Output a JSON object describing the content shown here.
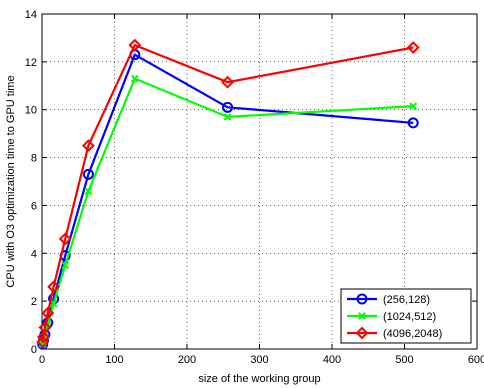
{
  "chart_data": {
    "type": "line",
    "xlabel": "size of the working group",
    "ylabel": "CPU with O3 optimization time to GPU time",
    "xlim": [
      0,
      600
    ],
    "ylim": [
      0,
      14
    ],
    "xticks": [
      0,
      100,
      200,
      300,
      400,
      500,
      600
    ],
    "yticks": [
      0,
      2,
      4,
      6,
      8,
      10,
      12,
      14
    ],
    "grid": true,
    "legend_position": "bottom-right",
    "series": [
      {
        "name": "(256,128)",
        "color": "#0000ff",
        "marker": "circle",
        "x": [
          1,
          2,
          4,
          8,
          16,
          32,
          64,
          128,
          256,
          512
        ],
        "y": [
          0.2,
          0.35,
          0.6,
          1.1,
          2.1,
          3.9,
          7.3,
          12.3,
          10.1,
          9.45
        ]
      },
      {
        "name": "(1024,512)",
        "color": "#00ff00",
        "marker": "x",
        "x": [
          1,
          2,
          4,
          8,
          16,
          32,
          64,
          128,
          256,
          512
        ],
        "y": [
          0.2,
          0.3,
          0.55,
          1.0,
          1.9,
          3.5,
          6.6,
          11.3,
          9.7,
          10.15
        ]
      },
      {
        "name": "(4096,2048)",
        "color": "#ff0000",
        "marker": "diamond",
        "x": [
          1,
          2,
          4,
          8,
          16,
          32,
          64,
          128,
          256,
          512
        ],
        "y": [
          0.3,
          0.5,
          0.9,
          1.5,
          2.6,
          4.6,
          8.5,
          12.7,
          11.15,
          12.6
        ]
      }
    ]
  }
}
